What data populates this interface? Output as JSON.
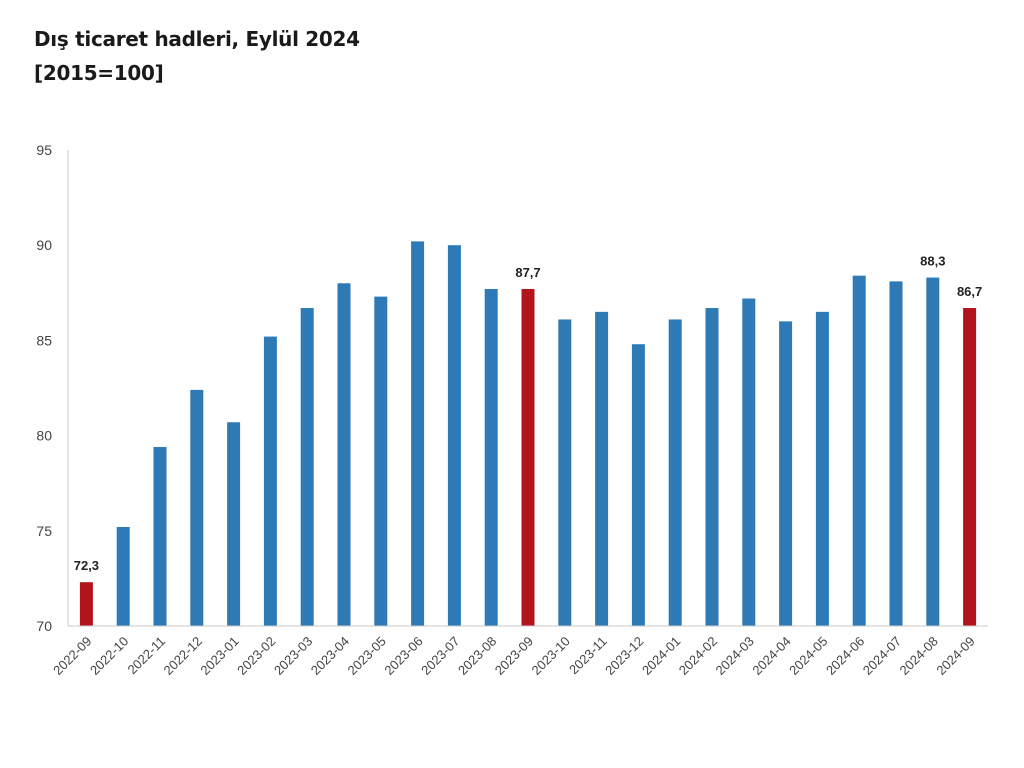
{
  "title": "Dış ticaret hadleri, Eylül 2024",
  "subtitle": "[2015=100]",
  "colors": {
    "bar": "#2e7ab6",
    "highlight": "#b3141c",
    "axis": "#c8c8c8",
    "tick_text": "#444444",
    "label_text": "#222222"
  },
  "chart_data": {
    "type": "bar",
    "categories": [
      "2022-09",
      "2022-10",
      "2022-11",
      "2022-12",
      "2023-01",
      "2023-02",
      "2023-03",
      "2023-04",
      "2023-05",
      "2023-06",
      "2023-07",
      "2023-08",
      "2023-09",
      "2023-10",
      "2023-11",
      "2023-12",
      "2024-01",
      "2024-02",
      "2024-03",
      "2024-04",
      "2024-05",
      "2024-06",
      "2024-07",
      "2024-08",
      "2024-09"
    ],
    "values": [
      72.3,
      75.2,
      79.4,
      82.4,
      80.7,
      85.2,
      86.7,
      88.0,
      87.3,
      90.2,
      90.0,
      87.7,
      87.7,
      86.1,
      86.5,
      84.8,
      86.1,
      86.7,
      87.2,
      86.0,
      86.5,
      88.4,
      88.1,
      88.3,
      86.7
    ],
    "highlighted_categories": [
      "2022-09",
      "2023-09",
      "2024-09"
    ],
    "data_labels": [
      {
        "category": "2022-09",
        "text": "72,3"
      },
      {
        "category": "2023-09",
        "text": "87,7"
      },
      {
        "category": "2024-08",
        "text": "88,3"
      },
      {
        "category": "2024-09",
        "text": "86,7"
      }
    ],
    "ylim": [
      70,
      95
    ],
    "yticks": [
      "70",
      "75",
      "80",
      "85",
      "90",
      "95"
    ],
    "xlabel": "",
    "ylabel": "",
    "grid": false,
    "legend": "none"
  }
}
